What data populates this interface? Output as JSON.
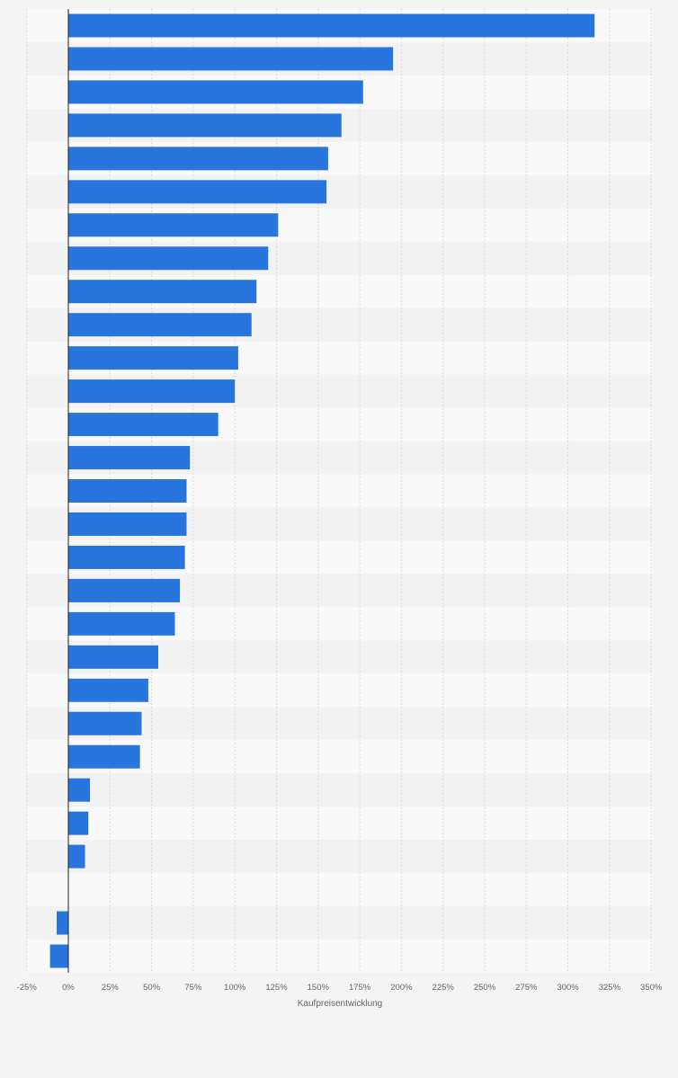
{
  "colors": {
    "page_background": "#f4f4f4",
    "row_band_light": "#f9f9f9",
    "row_band_dark": "#f2f2f2",
    "bar": "#2876dd",
    "gridline": "#dddddd",
    "axis_line": "#222222",
    "label": "#666666"
  },
  "chart_data": {
    "type": "bar",
    "orientation": "horizontal",
    "xlabel": "Kaufpreisentwicklung",
    "xlim": [
      -25,
      350
    ],
    "tick_values": [
      -25,
      0,
      25,
      50,
      75,
      100,
      125,
      150,
      175,
      200,
      225,
      250,
      275,
      300,
      325,
      350
    ],
    "tick_labels": [
      "-25%",
      "0%",
      "25%",
      "50%",
      "75%",
      "100%",
      "125%",
      "150%",
      "175%",
      "200%",
      "225%",
      "250%",
      "275%",
      "300%",
      "325%",
      "350%"
    ],
    "grid": true,
    "unit": "%",
    "values": [
      316,
      195,
      177,
      164,
      156,
      155,
      126,
      120,
      113,
      110,
      102,
      100,
      90,
      73,
      71,
      71,
      70,
      67,
      64,
      54,
      48,
      44,
      43,
      13,
      12,
      10,
      0,
      -7,
      -11
    ]
  }
}
